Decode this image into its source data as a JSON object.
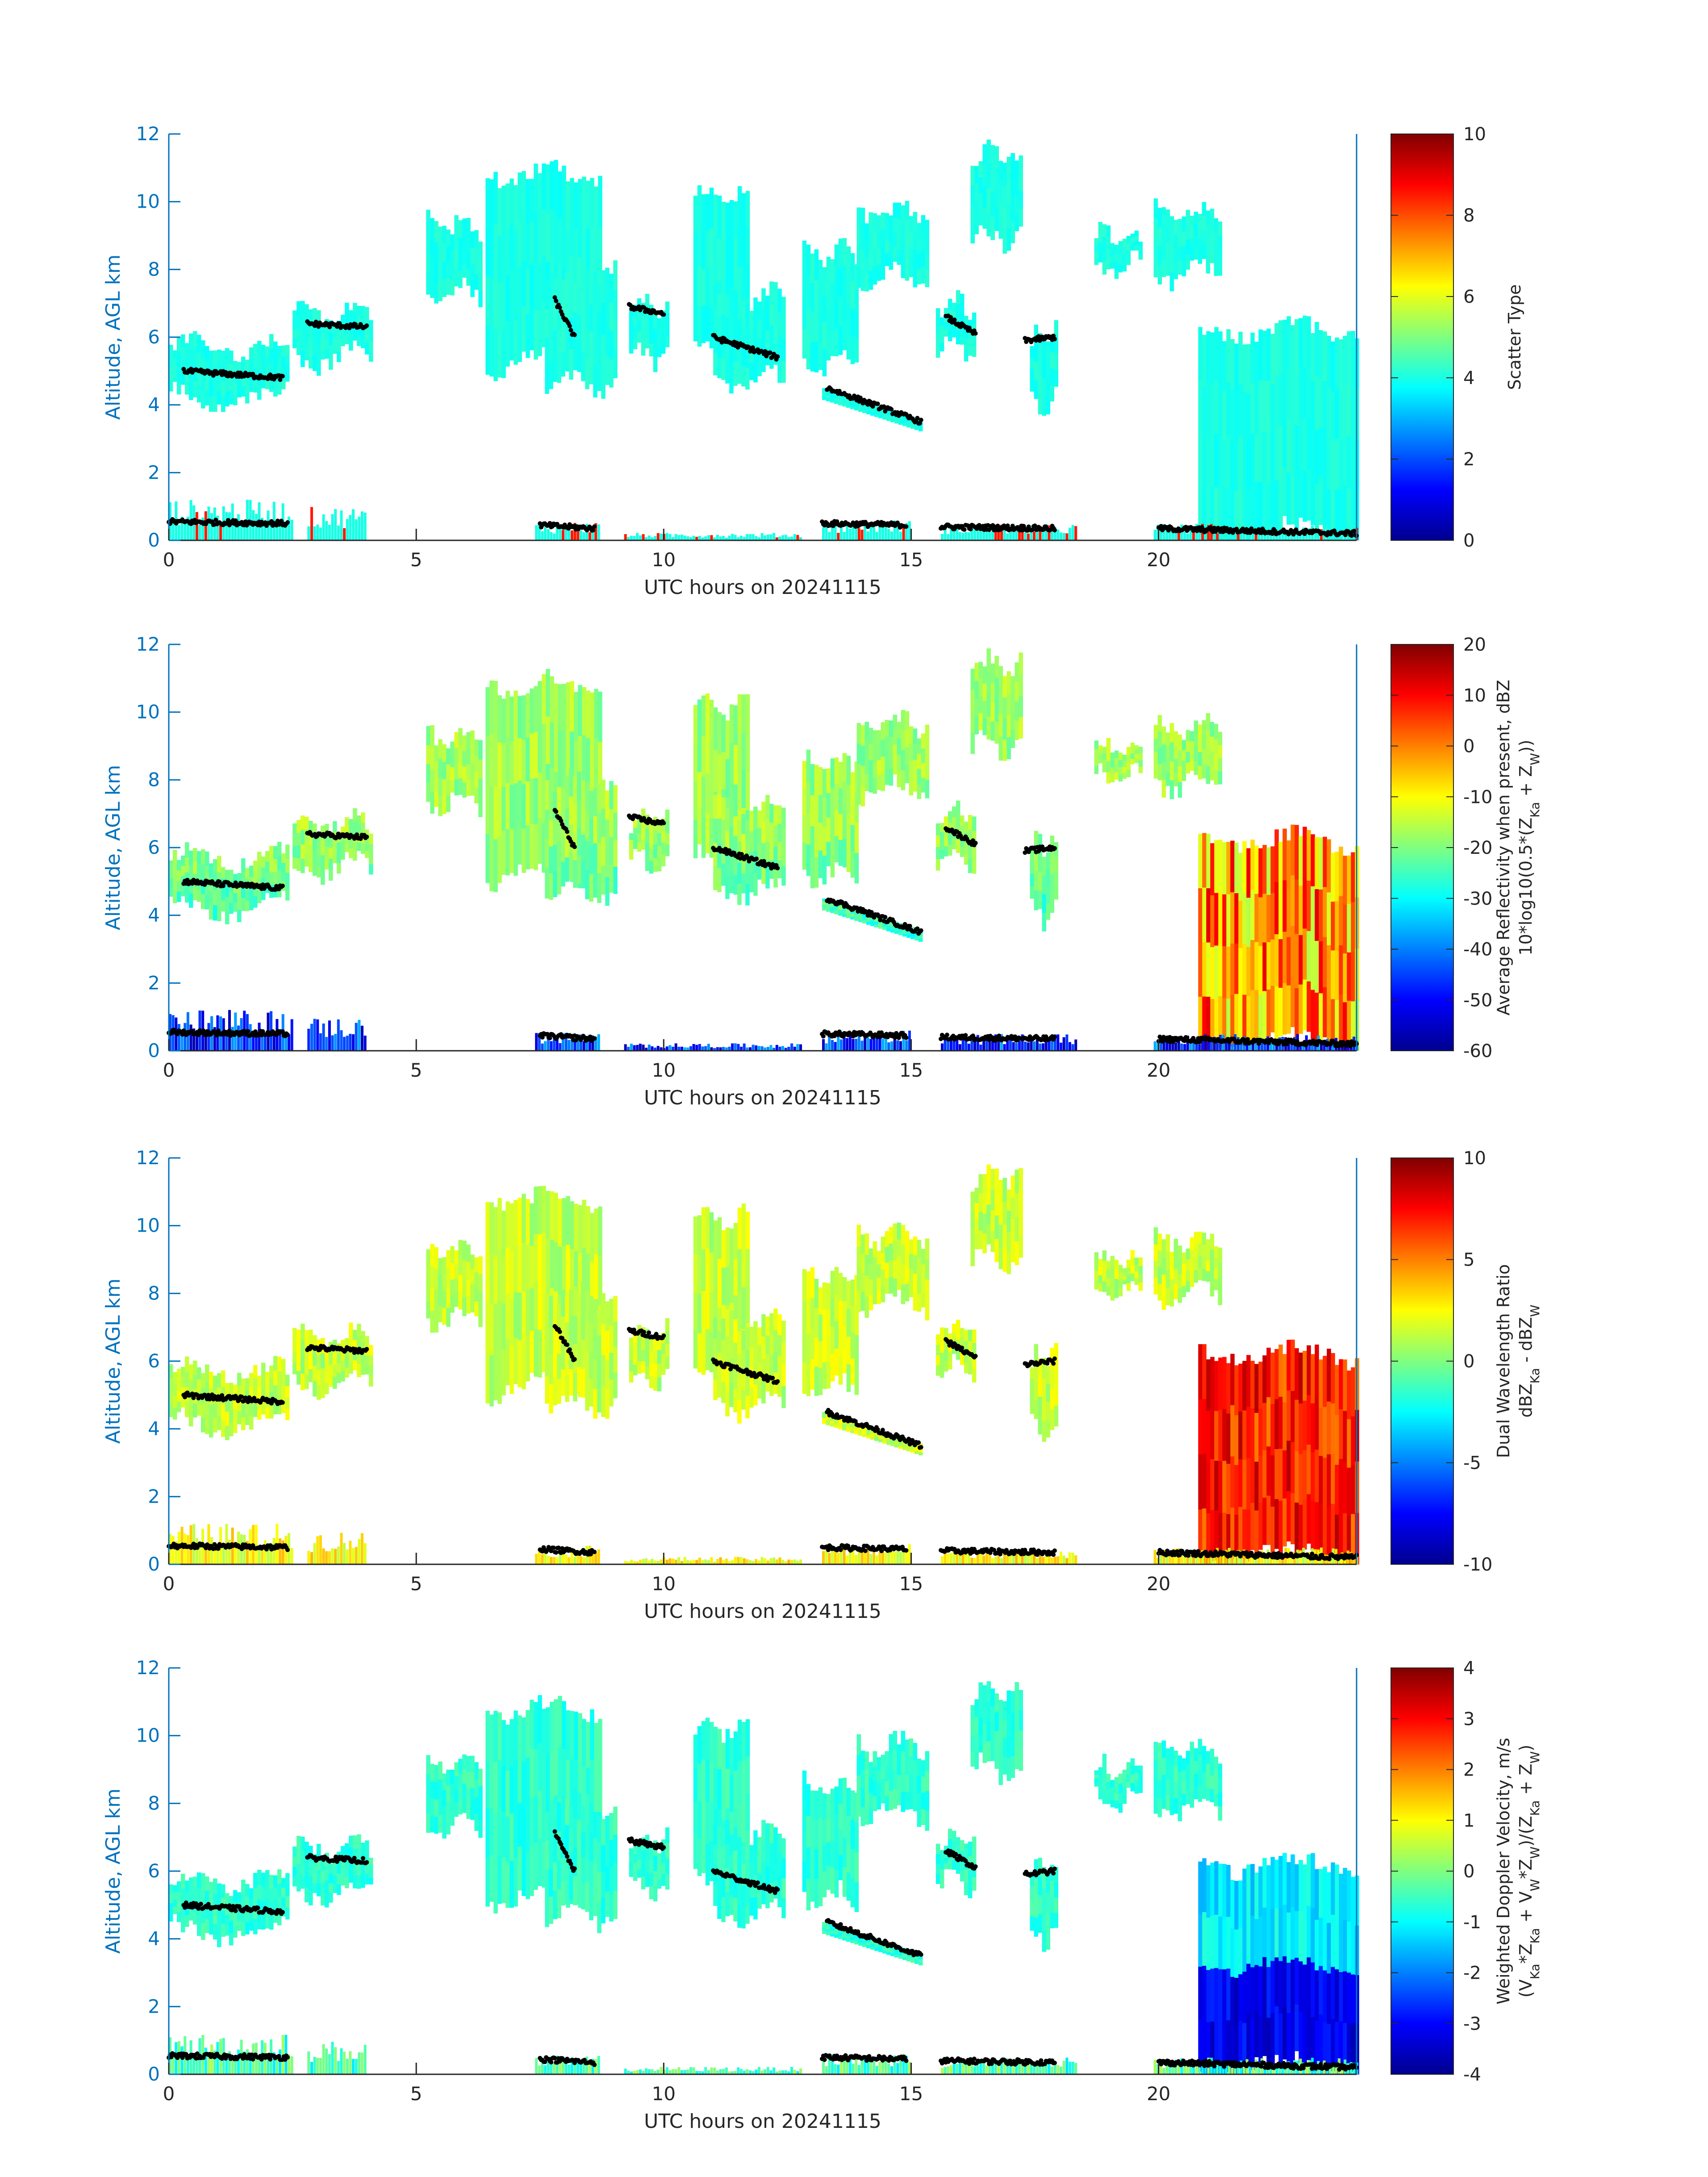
{
  "figure": {
    "date": "20241115"
  },
  "chart_data": [
    {
      "type": "heatmap",
      "title": "",
      "xlabel": "UTC hours on 20241115",
      "ylabel": "Altitude, AGL km",
      "xlim": [
        0,
        24
      ],
      "ylim": [
        0,
        12
      ],
      "xticks": [
        "0",
        "5",
        "10",
        "15",
        "20"
      ],
      "yticks": [
        "0",
        "2",
        "4",
        "6",
        "8",
        "10",
        "12"
      ],
      "colorbar": {
        "label": "Scatter Type",
        "label2": "",
        "range": [
          0,
          10
        ],
        "ticks": [
          "0",
          "2",
          "4",
          "6",
          "8",
          "10"
        ]
      },
      "dominant_value": 4,
      "notes": "Cloud echoes mostly scatter type ~4 (cyan); near-surface specks ~9 (red)."
    },
    {
      "type": "heatmap",
      "title": "",
      "xlabel": "UTC hours on 20241115",
      "ylabel": "Altitude, AGL km",
      "xlim": [
        0,
        24
      ],
      "ylim": [
        0,
        12
      ],
      "xticks": [
        "0",
        "5",
        "10",
        "15",
        "20"
      ],
      "yticks": [
        "0",
        "2",
        "4",
        "6",
        "8",
        "10",
        "12"
      ],
      "colorbar": {
        "label": "Average Reflectivity when present, dBZ",
        "label2": "10*log10(0.5*(Z_Ka + Z_W))",
        "range": [
          -60,
          20
        ],
        "ticks": [
          "-60",
          "-50",
          "-40",
          "-30",
          "-20",
          "-10",
          "0",
          "10",
          "20"
        ]
      },
      "notes": "Ice clouds -30 to -10 dBZ; precipitation after 21 UTC reaches 0 to 15 dBZ."
    },
    {
      "type": "heatmap",
      "title": "",
      "xlabel": "UTC hours on 20241115",
      "ylabel": "Altitude, AGL km",
      "xlim": [
        0,
        24
      ],
      "ylim": [
        0,
        12
      ],
      "xticks": [
        "0",
        "5",
        "10",
        "15",
        "20"
      ],
      "yticks": [
        "0",
        "2",
        "4",
        "6",
        "8",
        "10",
        "12"
      ],
      "colorbar": {
        "label": "Dual Wavelength Ratio",
        "label2": "dBZ_Ka - dBZ_W",
        "range": [
          -10,
          10
        ],
        "ticks": [
          "-10",
          "-5",
          "0",
          "5",
          "10"
        ]
      },
      "notes": "Mostly 1 to 4 dB (yellow); 5 to 10 dB (red) in the 21-24 UTC precipitation."
    },
    {
      "type": "heatmap",
      "title": "",
      "xlabel": "UTC hours on 20241115",
      "ylabel": "Altitude, AGL km",
      "xlim": [
        0,
        24
      ],
      "ylim": [
        0,
        12
      ],
      "xticks": [
        "0",
        "5",
        "10",
        "15",
        "20"
      ],
      "yticks": [
        "0",
        "2",
        "4",
        "6",
        "8",
        "10",
        "12"
      ],
      "colorbar": {
        "label": "Weighted Doppler Velocity, m/s",
        "label2": "(V_Ka*Z_Ka + V_W*Z_W)/(Z_Ka + Z_W)",
        "range": [
          -4,
          4
        ],
        "ticks": [
          "-4",
          "-3",
          "-2",
          "-1",
          "0",
          "1",
          "2",
          "3",
          "4"
        ]
      },
      "notes": "Cloud velocities -1 to 0 m/s; precipitation below ~2.9 km falls at -3 to -4 m/s."
    }
  ],
  "cloud_regions": [
    {
      "t0": 0.0,
      "t1": 2.4,
      "top": 5.7,
      "base": 4.2
    },
    {
      "t0": 2.5,
      "t1": 4.1,
      "top": 6.7,
      "base": 5.4
    },
    {
      "t0": 5.2,
      "t1": 6.3,
      "top": 9.3,
      "base": 7.3
    },
    {
      "t0": 6.4,
      "t1": 8.7,
      "top": 10.8,
      "base": 5.2
    },
    {
      "t0": 7.6,
      "t1": 9.0,
      "top": 8.0,
      "base": 4.7
    },
    {
      "t0": 9.3,
      "t1": 10.1,
      "top": 6.9,
      "base": 5.5
    },
    {
      "t0": 10.6,
      "t1": 11.7,
      "top": 10.2,
      "base": 5.6
    },
    {
      "t0": 11.0,
      "t1": 12.4,
      "top": 7.2,
      "base": 4.7
    },
    {
      "t0": 12.8,
      "t1": 13.9,
      "top": 8.5,
      "base": 5.2
    },
    {
      "t0": 13.9,
      "t1": 15.3,
      "top": 9.7,
      "base": 7.7
    },
    {
      "t0": 15.5,
      "t1": 16.3,
      "top": 7.0,
      "base": 5.7
    },
    {
      "t0": 16.2,
      "t1": 17.2,
      "top": 11.4,
      "base": 9.0
    },
    {
      "t0": 17.4,
      "t1": 17.9,
      "top": 6.1,
      "base": 4.0
    },
    {
      "t0": 18.7,
      "t1": 19.6,
      "top": 9.0,
      "base": 8.1
    },
    {
      "t0": 19.9,
      "t1": 21.2,
      "top": 9.6,
      "base": 7.9
    },
    {
      "t0": 20.8,
      "t1": 24.0,
      "top": 6.2,
      "base": 0.2
    },
    {
      "t0": 13.2,
      "t1": 15.2,
      "top": 4.5,
      "base": 3.5
    }
  ],
  "markers": [
    {
      "t0": 0.3,
      "t1": 2.3,
      "h0": 5.0,
      "h1": 4.8
    },
    {
      "t0": 2.8,
      "t1": 4.0,
      "h0": 6.4,
      "h1": 6.3
    },
    {
      "t0": 7.8,
      "t1": 8.2,
      "h0": 7.1,
      "h1": 6.0
    },
    {
      "t0": 9.3,
      "t1": 10.0,
      "h0": 6.9,
      "h1": 6.7
    },
    {
      "t0": 11.0,
      "t1": 12.3,
      "h0": 6.0,
      "h1": 5.4
    },
    {
      "t0": 13.3,
      "t1": 15.2,
      "h0": 4.5,
      "h1": 3.5
    },
    {
      "t0": 15.7,
      "t1": 16.3,
      "h0": 6.6,
      "h1": 6.1
    },
    {
      "t0": 17.3,
      "t1": 17.9,
      "h0": 5.9,
      "h1": 6.0
    },
    {
      "t0": 0.0,
      "t1": 2.4,
      "h0": 0.55,
      "h1": 0.5
    },
    {
      "t0": 7.5,
      "t1": 8.6,
      "h0": 0.45,
      "h1": 0.35
    },
    {
      "t0": 13.2,
      "t1": 14.9,
      "h0": 0.5,
      "h1": 0.45
    },
    {
      "t0": 15.6,
      "t1": 17.9,
      "h0": 0.4,
      "h1": 0.35
    },
    {
      "t0": 20.0,
      "t1": 24.0,
      "h0": 0.35,
      "h1": 0.2
    }
  ]
}
